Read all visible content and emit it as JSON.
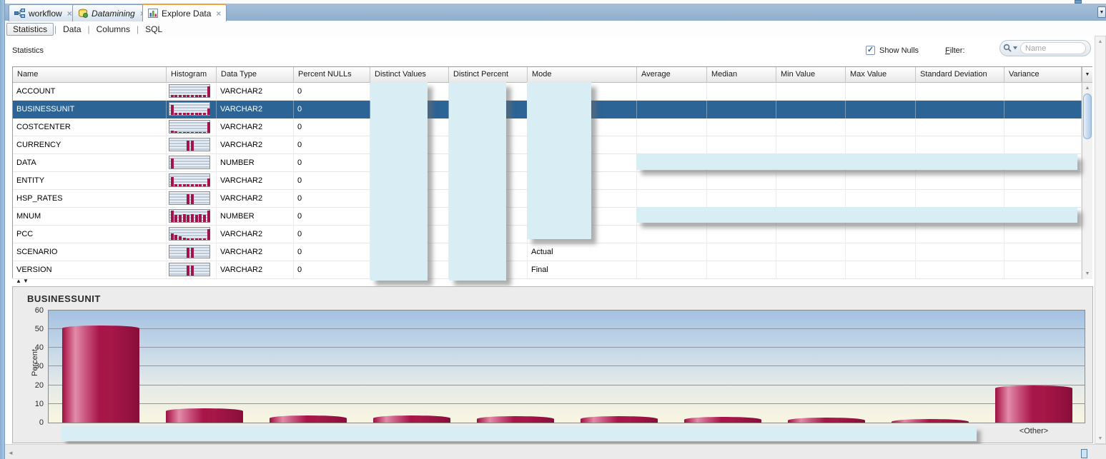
{
  "tabs": {
    "items": [
      {
        "label": "workflow",
        "icon": "workflow-icon",
        "active": false,
        "italic": false
      },
      {
        "label": "Datamining",
        "icon": "sql-icon",
        "active": false,
        "italic": true
      },
      {
        "label": "Explore Data",
        "icon": "chart-icon",
        "active": true,
        "italic": false
      }
    ],
    "close_glyph": "×",
    "overflow_glyph": "▼"
  },
  "subtabs": {
    "items": [
      "Statistics",
      "Data",
      "Columns",
      "SQL"
    ],
    "selected": "Statistics"
  },
  "panel": {
    "title": "Statistics",
    "show_nulls_checked": "✓",
    "show_nulls_label": "Show Nulls",
    "filter_mnemonic": "F",
    "filter_rest": "ilter:",
    "search_placeholder": "Name"
  },
  "table": {
    "columns": [
      "Name",
      "Histogram",
      "Data Type",
      "Percent NULLs",
      "Distinct Values",
      "Distinct Percent",
      "Mode",
      "Average",
      "Median",
      "Min Value",
      "Max Value",
      "Standard Deviation",
      "Variance"
    ],
    "rows": [
      {
        "name": "ACCOUNT",
        "data_type": "VARCHAR2",
        "percent_nulls": "0",
        "mode": "",
        "selected": false,
        "histogram": [
          15,
          15,
          15,
          15,
          15,
          15,
          15,
          15,
          15,
          90
        ]
      },
      {
        "name": "BUSINESSUNIT",
        "data_type": "VARCHAR2",
        "percent_nulls": "0",
        "mode": "",
        "selected": true,
        "histogram": [
          85,
          15,
          15,
          15,
          15,
          15,
          15,
          15,
          15,
          50
        ]
      },
      {
        "name": "COSTCENTER",
        "data_type": "VARCHAR2",
        "percent_nulls": "0",
        "mode": "",
        "selected": false,
        "histogram": [
          18,
          12,
          6,
          6,
          6,
          6,
          6,
          6,
          6,
          90
        ]
      },
      {
        "name": "CURRENCY",
        "data_type": "VARCHAR2",
        "percent_nulls": "0",
        "mode": "",
        "selected": false,
        "histogram": [
          0,
          0,
          0,
          0,
          80,
          80,
          0,
          0,
          0,
          0
        ]
      },
      {
        "name": "DATA",
        "data_type": "NUMBER",
        "percent_nulls": "0",
        "mode": "",
        "selected": false,
        "histogram": [
          80,
          0,
          0,
          0,
          0,
          0,
          0,
          0,
          0,
          0
        ]
      },
      {
        "name": "ENTITY",
        "data_type": "VARCHAR2",
        "percent_nulls": "0",
        "mode": "",
        "selected": false,
        "histogram": [
          75,
          20,
          18,
          18,
          18,
          18,
          18,
          18,
          18,
          65
        ]
      },
      {
        "name": "HSP_RATES",
        "data_type": "VARCHAR2",
        "percent_nulls": "0",
        "mode": "",
        "selected": false,
        "histogram": [
          0,
          0,
          0,
          0,
          80,
          80,
          0,
          0,
          0,
          0
        ]
      },
      {
        "name": "MNUM",
        "data_type": "NUMBER",
        "percent_nulls": "0",
        "mode": "",
        "selected": false,
        "histogram": [
          95,
          60,
          60,
          65,
          60,
          65,
          60,
          65,
          60,
          95
        ]
      },
      {
        "name": "PCC",
        "data_type": "VARCHAR2",
        "percent_nulls": "0",
        "mode": "",
        "selected": false,
        "histogram": [
          50,
          40,
          28,
          15,
          12,
          12,
          12,
          12,
          12,
          88
        ]
      },
      {
        "name": "SCENARIO",
        "data_type": "VARCHAR2",
        "percent_nulls": "0",
        "mode": "Actual",
        "selected": false,
        "histogram": [
          0,
          0,
          0,
          0,
          80,
          80,
          0,
          0,
          0,
          0
        ]
      },
      {
        "name": "VERSION",
        "data_type": "VARCHAR2",
        "percent_nulls": "0",
        "mode": "Final",
        "selected": false,
        "histogram": [
          0,
          0,
          0,
          0,
          80,
          80,
          0,
          0,
          0,
          0
        ]
      }
    ]
  },
  "chart_data": {
    "type": "bar",
    "title": "BUSINESSUNIT",
    "xlabel": "",
    "ylabel": "Percent",
    "ylim": [
      0,
      60
    ],
    "yticks": [
      0,
      10,
      20,
      30,
      40,
      50,
      60
    ],
    "grid": "horizontal",
    "legend": "none",
    "categories": [
      "",
      "",
      "",
      "",
      "",
      "",
      "",
      "",
      "",
      "<Other>"
    ],
    "values": [
      52,
      7.5,
      4,
      4,
      3.5,
      3.5,
      3,
      2.5,
      2,
      20
    ]
  },
  "colors": {
    "selection_row": "#2d6496",
    "bar_crimson": "#a81549",
    "overlay_blue": "#d9edf4",
    "tabbar_blue": "#9ab5d3",
    "active_tab_accent": "#eaa63d",
    "plot_top": "#a4c1e2",
    "plot_bottom": "#f9f5e1"
  }
}
